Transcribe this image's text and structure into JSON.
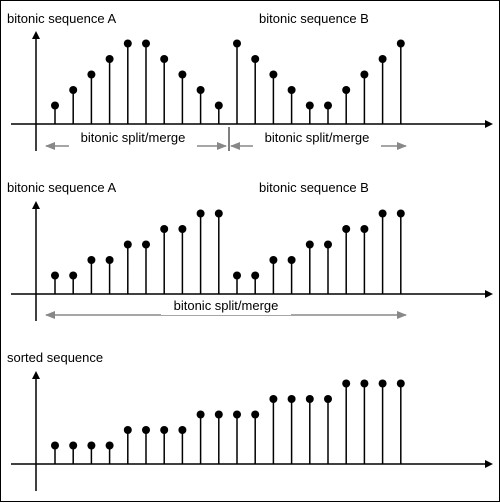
{
  "panels": [
    {
      "labels": [
        "bitonic sequence A",
        "bitonic sequence B"
      ],
      "values": [
        1,
        2,
        3,
        4,
        5,
        5,
        4,
        3,
        2,
        1,
        5,
        4,
        3,
        2,
        1,
        1,
        2,
        3,
        4,
        5
      ],
      "arrows": [
        "bitonic split/merge",
        "bitonic split/merge"
      ]
    },
    {
      "labels": [
        "bitonic sequence A",
        "bitonic sequence B"
      ],
      "values": [
        1,
        1,
        2,
        2,
        3,
        3,
        4,
        4,
        5,
        5,
        1,
        1,
        2,
        2,
        3,
        3,
        4,
        4,
        5,
        5
      ],
      "arrows": [
        "bitonic split/merge"
      ]
    },
    {
      "labels": [
        "sorted sequence"
      ],
      "values": [
        1,
        1,
        1,
        1,
        2,
        2,
        2,
        2,
        3,
        3,
        3,
        3,
        4,
        4,
        4,
        4,
        5,
        5,
        5,
        5
      ],
      "arrows": []
    }
  ]
}
